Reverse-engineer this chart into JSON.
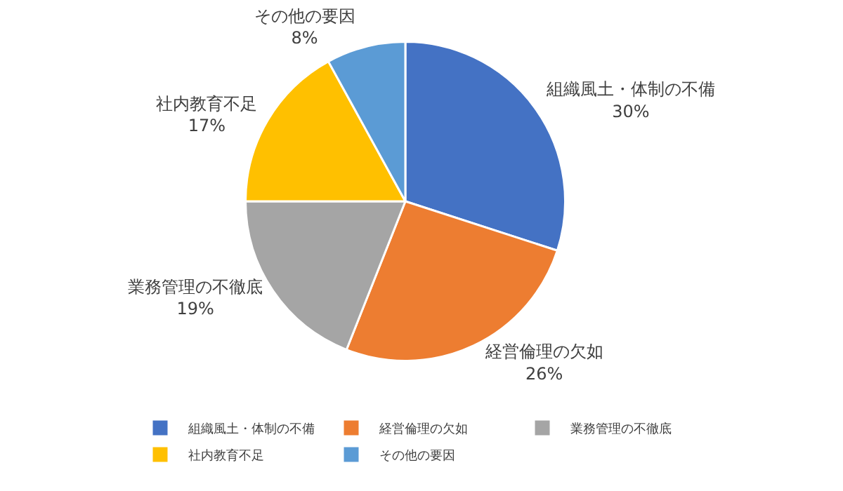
{
  "chart_data": {
    "type": "pie",
    "categories": [
      "組織風土・体制の不備",
      "経営倫理の欠如",
      "業務管理の不徹底",
      "社内教育不足",
      "その他の要因"
    ],
    "values": [
      30,
      26,
      19,
      17,
      8
    ],
    "value_labels": [
      "30%",
      "26%",
      "19%",
      "17%",
      "8%"
    ],
    "colors": [
      "#4472c4",
      "#ed7d31",
      "#a5a5a5",
      "#ffc000",
      "#5b9bd5"
    ],
    "legend": "bottom"
  }
}
